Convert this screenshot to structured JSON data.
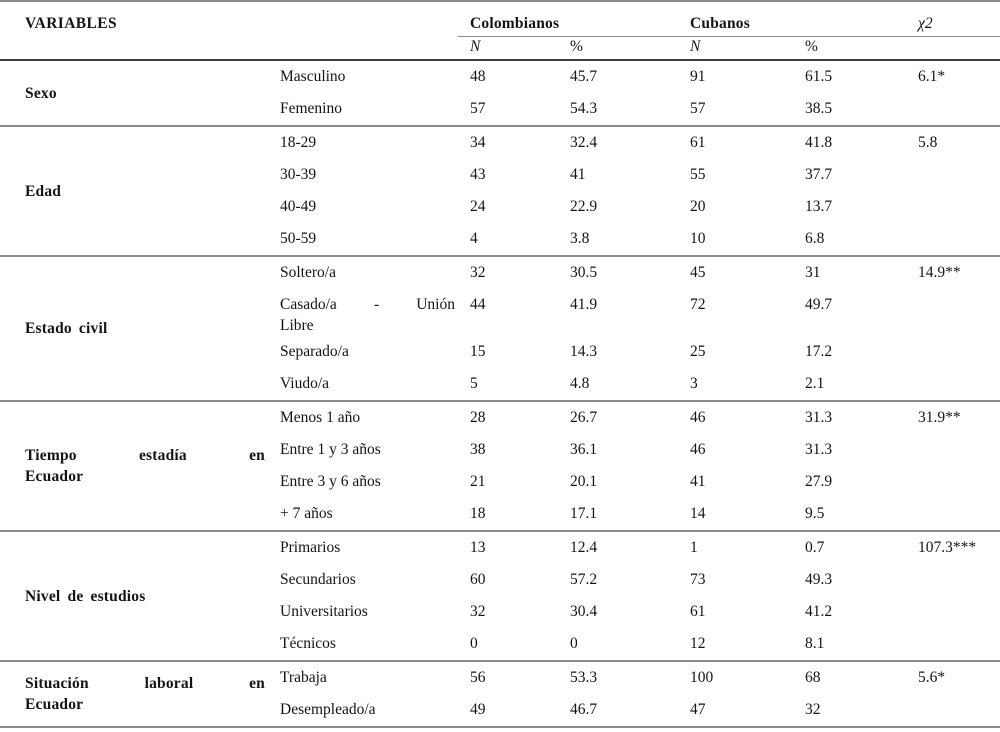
{
  "header": {
    "variables_label": "VARIABLES",
    "colombianos_label": "Colombianos",
    "cubanos_label": "Cubanos",
    "chi_label": "χ2",
    "sub_labels": [
      "N",
      "%",
      "N",
      "%"
    ]
  },
  "sections": [
    {
      "label_lines": [
        "Sexo"
      ],
      "rows": [
        {
          "category_lines": [
            "Masculino"
          ],
          "values": [
            "48",
            "45.7",
            "91",
            "61.5"
          ],
          "chi": "6.1*"
        },
        {
          "category_lines": [
            "Femenino"
          ],
          "values": [
            "57",
            "54.3",
            "57",
            "38.5"
          ],
          "chi": ""
        }
      ]
    },
    {
      "label_lines": [
        "Edad"
      ],
      "rows": [
        {
          "category_lines": [
            "18-29"
          ],
          "values": [
            "34",
            "32.4",
            "61",
            "41.8"
          ],
          "chi": "5.8"
        },
        {
          "category_lines": [
            "30-39"
          ],
          "values": [
            "43",
            "41",
            "55",
            "37.7"
          ],
          "chi": ""
        },
        {
          "category_lines": [
            "40-49"
          ],
          "values": [
            "24",
            "22.9",
            "20",
            "13.7"
          ],
          "chi": ""
        },
        {
          "category_lines": [
            "50-59"
          ],
          "values": [
            "4",
            "3.8",
            "10",
            "6.8"
          ],
          "chi": ""
        }
      ]
    },
    {
      "label_lines": [
        "Estado civil"
      ],
      "rows": [
        {
          "category_lines": [
            "Soltero/a"
          ],
          "values": [
            "32",
            "30.5",
            "45",
            "31"
          ],
          "chi": "14.9**"
        },
        {
          "category_lines": [
            "Casado/a - Unión",
            "Libre"
          ],
          "values": [
            "44",
            "41.9",
            "72",
            "49.7"
          ],
          "chi": ""
        },
        {
          "category_lines": [
            "Separado/a"
          ],
          "values": [
            "15",
            "14.3",
            "25",
            "17.2"
          ],
          "chi": ""
        },
        {
          "category_lines": [
            "Viudo/a"
          ],
          "values": [
            "5",
            "4.8",
            "3",
            "2.1"
          ],
          "chi": ""
        }
      ]
    },
    {
      "label_lines": [
        "Tiempo estadía en",
        "Ecuador"
      ],
      "rows": [
        {
          "category_lines": [
            "Menos 1 año"
          ],
          "values": [
            "28",
            "26.7",
            "46",
            "31.3"
          ],
          "chi": "31.9**"
        },
        {
          "category_lines": [
            "Entre 1 y 3 años"
          ],
          "values": [
            "38",
            "36.1",
            "46",
            "31.3"
          ],
          "chi": ""
        },
        {
          "category_lines": [
            "Entre 3 y 6 años"
          ],
          "values": [
            "21",
            "20.1",
            "41",
            "27.9"
          ],
          "chi": ""
        },
        {
          "category_lines": [
            "+ 7 años"
          ],
          "values": [
            "18",
            "17.1",
            "14",
            "9.5"
          ],
          "chi": ""
        }
      ]
    },
    {
      "label_lines": [
        "Nivel de estudios"
      ],
      "rows": [
        {
          "category_lines": [
            "Primarios"
          ],
          "values": [
            "13",
            "12.4",
            "1",
            "0.7"
          ],
          "chi": "107.3***"
        },
        {
          "category_lines": [
            "Secundarios"
          ],
          "values": [
            "60",
            "57.2",
            "73",
            "49.3"
          ],
          "chi": ""
        },
        {
          "category_lines": [
            "Universitarios"
          ],
          "values": [
            "32",
            "30.4",
            "61",
            "41.2"
          ],
          "chi": ""
        },
        {
          "category_lines": [
            "Técnicos"
          ],
          "values": [
            "0",
            "0",
            "12",
            "8.1"
          ],
          "chi": ""
        }
      ]
    },
    {
      "label_lines": [
        "Situación laboral en",
        "Ecuador"
      ],
      "rows": [
        {
          "category_lines": [
            "Trabaja"
          ],
          "values": [
            "56",
            "53.3",
            "100",
            "68"
          ],
          "chi": "5.6*"
        },
        {
          "category_lines": [
            "Desempleado/a"
          ],
          "values": [
            "49",
            "46.7",
            "47",
            "32"
          ],
          "chi": ""
        }
      ]
    }
  ],
  "colors": {
    "line_gray": "#8a8a8a",
    "line_dark": "#3f3f3f",
    "text": "#141414"
  }
}
